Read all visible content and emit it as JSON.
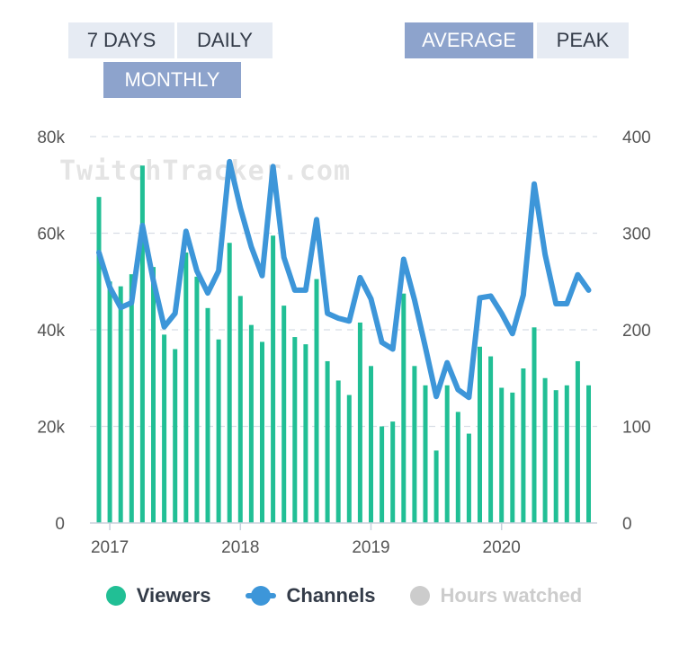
{
  "buttons": {
    "seven_days": "7 DAYS",
    "daily": "DAILY",
    "monthly": "MONTHLY",
    "average": "AVERAGE",
    "peak": "PEAK"
  },
  "watermark": "TwitchTracker.com",
  "legend": {
    "viewers": "Viewers",
    "channels": "Channels",
    "hours": "Hours watched"
  },
  "colors": {
    "viewers": "#21bf95",
    "channels": "#3d96d9",
    "hours_disabled": "#cccccc",
    "active_button": "#8da3cc",
    "inactive_button": "#e6ebf3"
  },
  "chart_data": {
    "type": "bar+line",
    "x_ticks": [
      "2017",
      "2018",
      "2019",
      "2020"
    ],
    "left_axis": {
      "ticks": [
        "0",
        "20k",
        "40k",
        "60k",
        "80k"
      ],
      "ylim": [
        0,
        80000
      ]
    },
    "right_axis": {
      "ticks": [
        "0",
        "100",
        "200",
        "300",
        "400"
      ],
      "ylim": [
        0,
        400
      ]
    },
    "grid": true,
    "legend_position": "bottom-center",
    "series": [
      {
        "name": "Viewers",
        "type": "bar",
        "axis": "left",
        "values": [
          67500,
          50000,
          49000,
          51500,
          74000,
          53000,
          39000,
          36000,
          56000,
          51000,
          44500,
          38000,
          58000,
          47000,
          41000,
          37500,
          59500,
          45000,
          38500,
          37000,
          50500,
          33500,
          29500,
          26500,
          41500,
          32500,
          20000,
          21000,
          47500,
          32500,
          28500,
          15000,
          28500,
          23000,
          18500,
          36500,
          34500,
          28000,
          27000,
          32000,
          40500,
          30000,
          27500,
          28500,
          33500,
          28500
        ]
      },
      {
        "name": "Channels",
        "type": "line",
        "axis": "right",
        "values": [
          280,
          244,
          223,
          228,
          308,
          251,
          203,
          217,
          302,
          261,
          238,
          261,
          374,
          326,
          286,
          256,
          369,
          275,
          241,
          241,
          314,
          217,
          212,
          209,
          254,
          232,
          187,
          180,
          273,
          231,
          182,
          131,
          166,
          138,
          130,
          233,
          235,
          217,
          196,
          236,
          351,
          278,
          227,
          227,
          257,
          241
        ]
      }
    ]
  }
}
